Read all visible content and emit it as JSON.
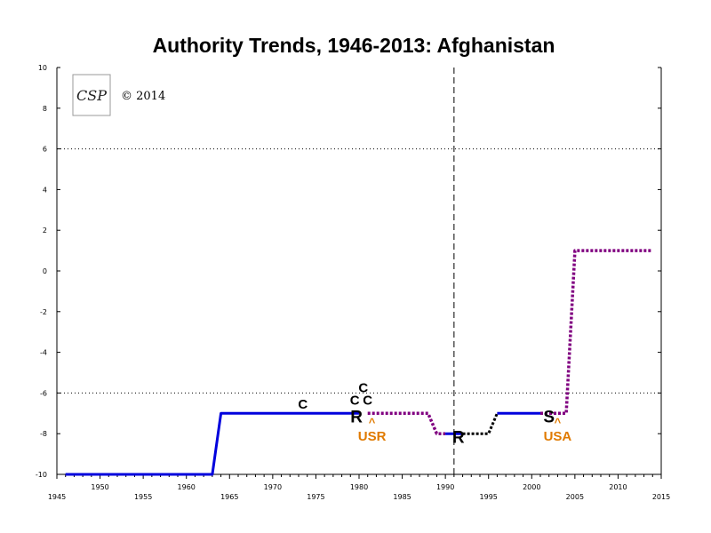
{
  "chart_data": {
    "type": "line",
    "title": "Authority Trends, 1946-2013: Afghanistan",
    "copyright": "© 2014",
    "logo_text": "CSP",
    "xlim": [
      1945,
      2015
    ],
    "ylim": [
      -10,
      10
    ],
    "x_ticks": [
      1945,
      1950,
      1955,
      1960,
      1965,
      1970,
      1975,
      1980,
      1985,
      1990,
      1995,
      2000,
      2005,
      2010,
      2015
    ],
    "y_ticks": [
      -10,
      -8,
      -6,
      -4,
      -2,
      0,
      2,
      4,
      6,
      8,
      10
    ],
    "threshold_lines": [
      6,
      -6
    ],
    "reference_year": 1991,
    "colors": {
      "regime": "#0000dd",
      "interregnum": "#800080",
      "transition": "#000000",
      "event_label": "#000000",
      "intervention": "#e07a00"
    },
    "segments": [
      {
        "style": "regime",
        "points": [
          [
            1946,
            -10
          ],
          [
            1963,
            -10
          ],
          [
            1964,
            -7
          ],
          [
            1980,
            -7
          ]
        ]
      },
      {
        "style": "interregnum",
        "points": [
          [
            1981,
            -7
          ],
          [
            1988,
            -7
          ],
          [
            1989,
            -8
          ],
          [
            1990,
            -8
          ]
        ]
      },
      {
        "style": "regime",
        "points": [
          [
            1990,
            -8
          ],
          [
            1992,
            -8
          ]
        ]
      },
      {
        "style": "transition",
        "points": [
          [
            1992,
            -8
          ],
          [
            1995,
            -8
          ],
          [
            1996,
            -7
          ]
        ]
      },
      {
        "style": "regime",
        "points": [
          [
            1996,
            -7
          ],
          [
            2001,
            -7
          ]
        ]
      },
      {
        "style": "interregnum",
        "points": [
          [
            2001,
            -7
          ],
          [
            2004,
            -7
          ],
          [
            2005,
            1
          ],
          [
            2014,
            1
          ]
        ]
      }
    ],
    "events": [
      {
        "label": "C",
        "x": 1973.5,
        "y": -6.5,
        "size": "small"
      },
      {
        "label": "C",
        "x": 1979.5,
        "y": -6.3,
        "size": "small"
      },
      {
        "label": "C",
        "x": 1981,
        "y": -6.3,
        "size": "small"
      },
      {
        "label": "C",
        "x": 1980.5,
        "y": -5.7,
        "size": "small"
      },
      {
        "label": "R",
        "x": 1979.7,
        "y": -7.1,
        "size": "large"
      },
      {
        "label": "R",
        "x": 1991.5,
        "y": -8.1,
        "size": "large"
      },
      {
        "label": "S",
        "x": 2002,
        "y": -7.1,
        "size": "large"
      }
    ],
    "interventions": [
      {
        "caret": "^",
        "label": "USR",
        "x": 1981.5
      },
      {
        "caret": "^",
        "label": "USA",
        "x": 2003
      }
    ]
  }
}
